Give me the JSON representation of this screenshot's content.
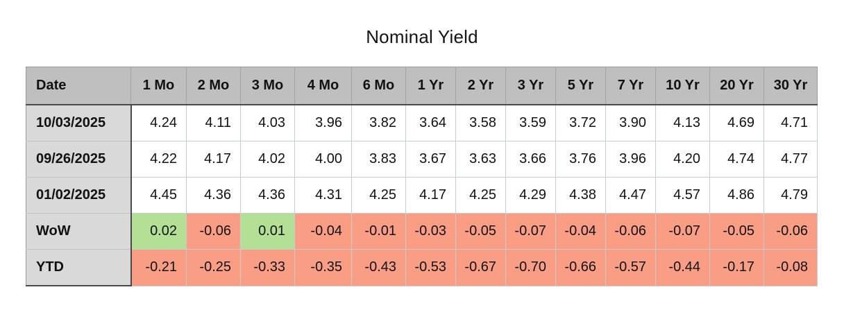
{
  "title": "Nominal Yield",
  "table": {
    "columns": [
      "Date",
      "1 Mo",
      "2 Mo",
      "3 Mo",
      "4 Mo",
      "6 Mo",
      "1 Yr",
      "2 Yr",
      "3 Yr",
      "5 Yr",
      "7 Yr",
      "10 Yr",
      "20 Yr",
      "30 Yr"
    ],
    "rows": [
      {
        "label": "10/03/2025",
        "colored": false,
        "values": [
          "4.24",
          "4.11",
          "4.03",
          "3.96",
          "3.82",
          "3.64",
          "3.58",
          "3.59",
          "3.72",
          "3.90",
          "4.13",
          "4.69",
          "4.71"
        ]
      },
      {
        "label": "09/26/2025",
        "colored": false,
        "values": [
          "4.22",
          "4.17",
          "4.02",
          "4.00",
          "3.83",
          "3.67",
          "3.63",
          "3.66",
          "3.76",
          "3.96",
          "4.20",
          "4.74",
          "4.77"
        ]
      },
      {
        "label": "01/02/2025",
        "colored": false,
        "values": [
          "4.45",
          "4.36",
          "4.36",
          "4.31",
          "4.25",
          "4.17",
          "4.25",
          "4.29",
          "4.38",
          "4.47",
          "4.57",
          "4.86",
          "4.79"
        ]
      },
      {
        "label": "WoW",
        "colored": true,
        "values": [
          "0.02",
          "-0.06",
          "0.01",
          "-0.04",
          "-0.01",
          "-0.03",
          "-0.05",
          "-0.07",
          "-0.04",
          "-0.06",
          "-0.07",
          "-0.05",
          "-0.06"
        ]
      },
      {
        "label": "YTD",
        "colored": true,
        "values": [
          "-0.21",
          "-0.25",
          "-0.33",
          "-0.35",
          "-0.43",
          "-0.53",
          "-0.67",
          "-0.70",
          "-0.66",
          "-0.57",
          "-0.44",
          "-0.17",
          "-0.08"
        ]
      }
    ]
  },
  "colors": {
    "header_bg": "#bfbfbf",
    "label_bg": "#d9d9d9",
    "positive_bg": "#b3e095",
    "negative_bg": "#f99e85"
  },
  "chart_data": {
    "type": "table",
    "title": "Nominal Yield",
    "columns": [
      "Date",
      "1 Mo",
      "2 Mo",
      "3 Mo",
      "4 Mo",
      "6 Mo",
      "1 Yr",
      "2 Yr",
      "3 Yr",
      "5 Yr",
      "7 Yr",
      "10 Yr",
      "20 Yr",
      "30 Yr"
    ],
    "rows": [
      {
        "label": "10/03/2025",
        "values": [
          4.24,
          4.11,
          4.03,
          3.96,
          3.82,
          3.64,
          3.58,
          3.59,
          3.72,
          3.9,
          4.13,
          4.69,
          4.71
        ]
      },
      {
        "label": "09/26/2025",
        "values": [
          4.22,
          4.17,
          4.02,
          4.0,
          3.83,
          3.67,
          3.63,
          3.66,
          3.76,
          3.96,
          4.2,
          4.74,
          4.77
        ]
      },
      {
        "label": "01/02/2025",
        "values": [
          4.45,
          4.36,
          4.36,
          4.31,
          4.25,
          4.17,
          4.25,
          4.29,
          4.38,
          4.47,
          4.57,
          4.86,
          4.79
        ]
      },
      {
        "label": "WoW",
        "values": [
          0.02,
          -0.06,
          0.01,
          -0.04,
          -0.01,
          -0.03,
          -0.05,
          -0.07,
          -0.04,
          -0.06,
          -0.07,
          -0.05,
          -0.06
        ]
      },
      {
        "label": "YTD",
        "values": [
          -0.21,
          -0.25,
          -0.33,
          -0.35,
          -0.43,
          -0.53,
          -0.67,
          -0.7,
          -0.66,
          -0.57,
          -0.44,
          -0.17,
          -0.08
        ]
      }
    ],
    "notes": "WoW and YTD cells are color-coded: green for values >= 0, salmon for values < 0"
  }
}
